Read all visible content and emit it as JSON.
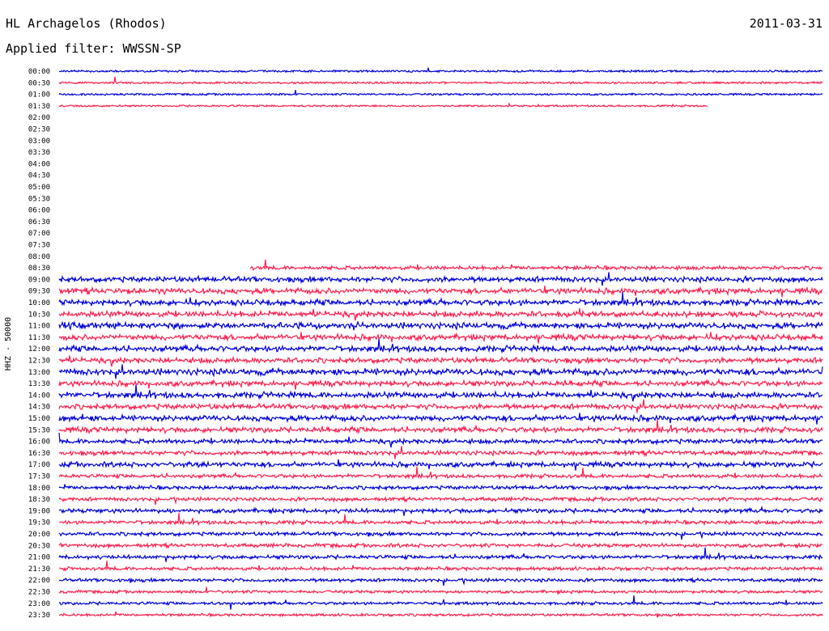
{
  "header": {
    "station": "HL Archagelos (Rhodos)",
    "date": "2011-03-31",
    "filter": "Applied filter: WWSSN-SP"
  },
  "chart_data": {
    "type": "line",
    "title": "HL Archagelos (Rhodos)",
    "subtitle": "Applied filter: WWSSN-SP",
    "ylabel": "HHZ - 50000",
    "tick_labels": [
      "00:00",
      "00:30",
      "01:00",
      "01:30",
      "02:00",
      "02:30",
      "03:00",
      "03:30",
      "04:00",
      "04:30",
      "05:00",
      "05:30",
      "06:00",
      "06:30",
      "07:00",
      "07:30",
      "08:00",
      "08:30",
      "09:00",
      "09:30",
      "10:00",
      "10:30",
      "11:00",
      "11:30",
      "12:00",
      "12:30",
      "13:00",
      "13:30",
      "14:00",
      "14:30",
      "15:00",
      "15:30",
      "16:00",
      "16:30",
      "17:00",
      "17:30",
      "18:00",
      "18:30",
      "19:00",
      "19:30",
      "20:00",
      "20:30",
      "21:00",
      "21:30",
      "22:00",
      "22:30",
      "23:00",
      "23:30"
    ],
    "colors": [
      "#0000dd",
      "#ff2050"
    ],
    "trace_extent": [
      1.0,
      1.0,
      1.0,
      0.85,
      0,
      0,
      0,
      0,
      0,
      0,
      0,
      0,
      0,
      0,
      0,
      0,
      0,
      0.5,
      1.0,
      1.0,
      1.0,
      1.0,
      1.0,
      1.0,
      1.0,
      1.0,
      1.0,
      1.0,
      1.0,
      1.0,
      1.0,
      1.0,
      1.0,
      1.0,
      1.0,
      1.0,
      1.0,
      1.0,
      1.0,
      1.0,
      1.0,
      1.0,
      1.0,
      1.0,
      1.0,
      1.0,
      1.0,
      1.0
    ],
    "activity": [
      0.08,
      0.08,
      0.08,
      0.06,
      0,
      0,
      0,
      0,
      0,
      0,
      0,
      0,
      0,
      0,
      0,
      0,
      0,
      0.3,
      0.5,
      0.55,
      0.55,
      0.55,
      0.6,
      0.55,
      0.55,
      0.5,
      0.65,
      0.5,
      0.55,
      0.5,
      0.55,
      0.5,
      0.4,
      0.4,
      0.45,
      0.3,
      0.3,
      0.3,
      0.35,
      0.3,
      0.3,
      0.3,
      0.3,
      0.25,
      0.25,
      0.2,
      0.2,
      0.15
    ]
  }
}
